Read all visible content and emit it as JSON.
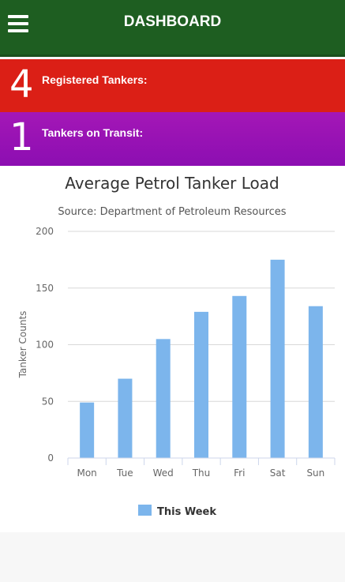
{
  "header": {
    "title": "DASHBOARD",
    "menu_icon": "hamburger-menu-icon"
  },
  "stats": [
    {
      "value": "4",
      "label": "Registered Tankers:",
      "color": "#db1f16"
    },
    {
      "value": "1",
      "label": "Tankers on Transit:",
      "color": "#9a12b4"
    }
  ],
  "chart_data": {
    "type": "bar",
    "title": "Average Petrol Tanker Load",
    "subtitle": "Source: Department of Petroleum Resources",
    "xlabel": "",
    "ylabel": "Tanker Counts",
    "categories": [
      "Mon",
      "Tue",
      "Wed",
      "Thu",
      "Fri",
      "Sat",
      "Sun"
    ],
    "series": [
      {
        "name": "This Week",
        "values": [
          49,
          70,
          105,
          129,
          143,
          175,
          134
        ],
        "color": "#7cb5ec"
      }
    ],
    "ylim": [
      0,
      200
    ],
    "yticks": [
      0,
      50,
      100,
      150,
      200
    ],
    "grid": true,
    "legend": "bottom"
  }
}
